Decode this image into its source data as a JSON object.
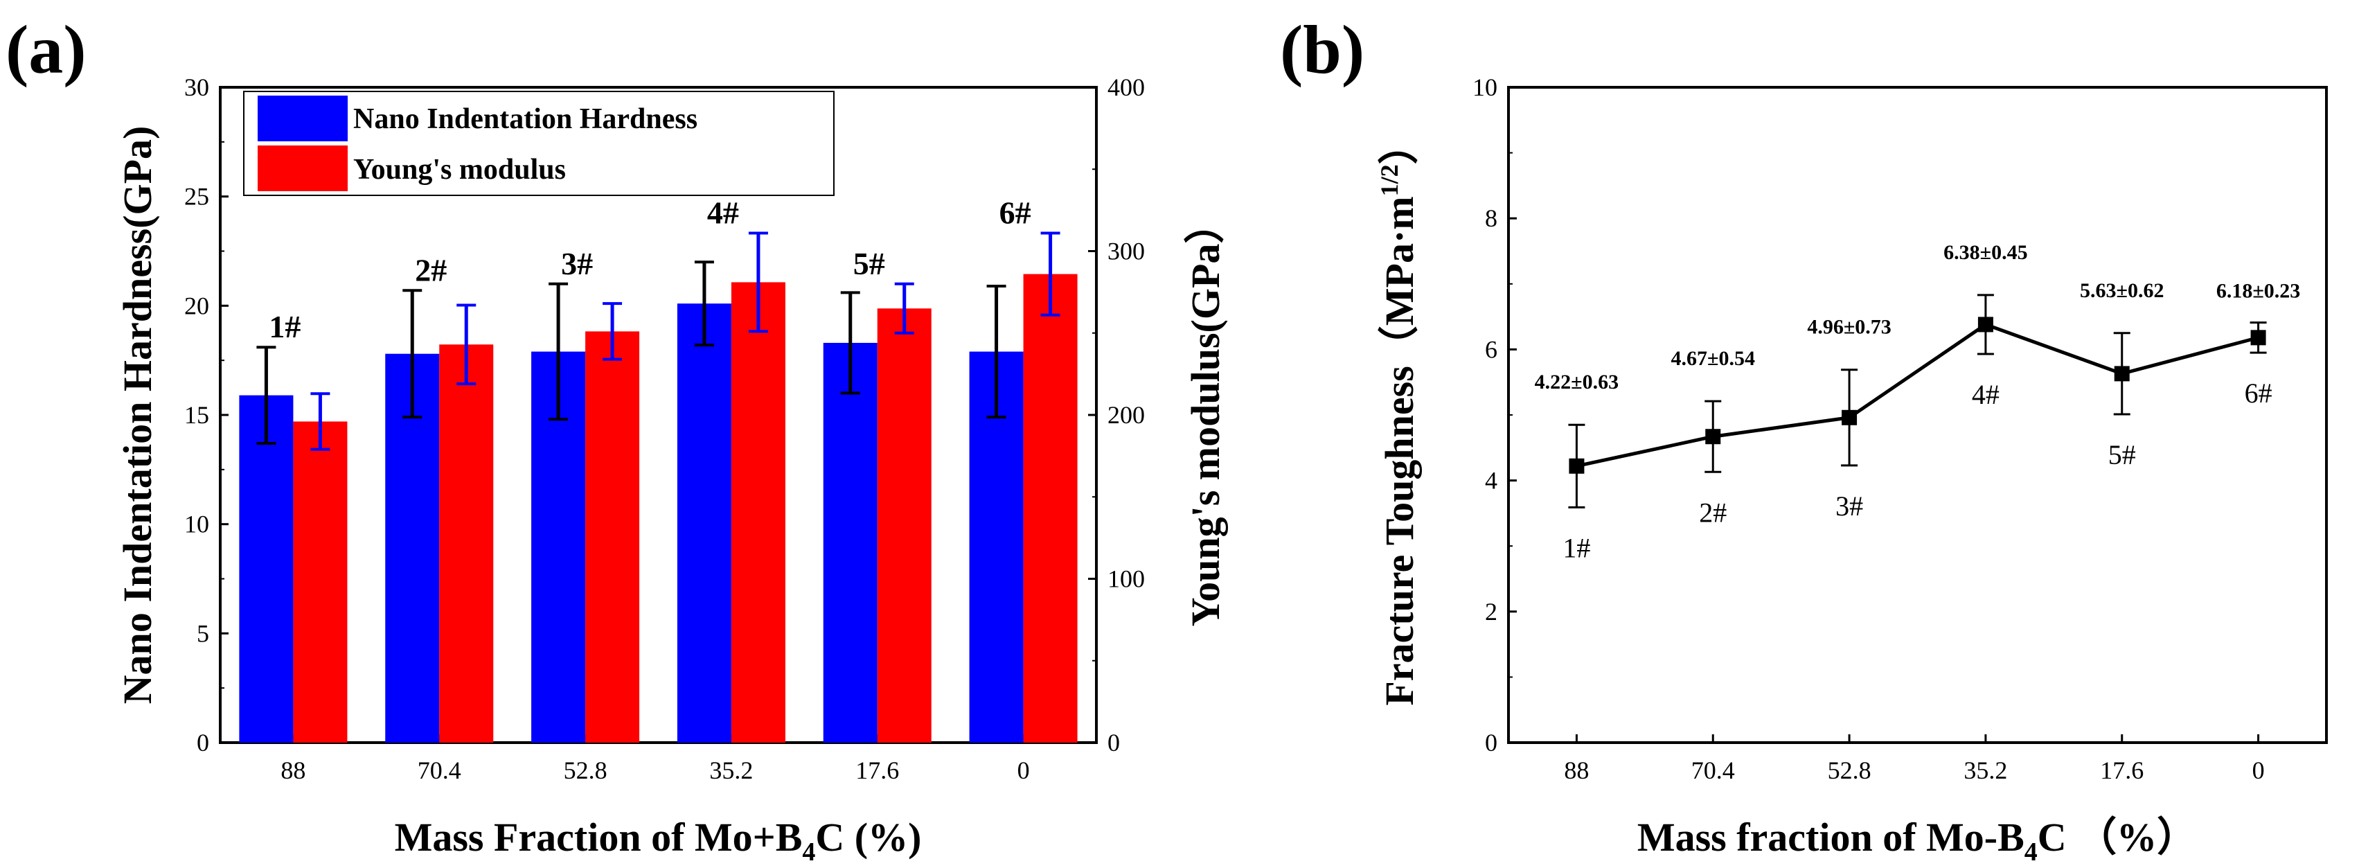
{
  "panels": {
    "a": {
      "label": "(a)"
    },
    "b": {
      "label": "(b)"
    }
  },
  "chart_data": [
    {
      "type": "bar",
      "categories": [
        "88",
        "70.4",
        "52.8",
        "35.2",
        "17.6",
        "0"
      ],
      "xlabel": "Mass Fraction of Mo+B4C (%)",
      "xlabel_main": "Mass Fraction of Mo+B",
      "xlabel_sub": "4",
      "xlabel_tail": "C (%)",
      "ylabel": "Nano Indentation Hardness(GPa)",
      "ylim": [
        0,
        30
      ],
      "yticks": [
        "0",
        "5",
        "10",
        "15",
        "20",
        "25",
        "30"
      ],
      "y2label": "Young's modulus(GPa）",
      "y2lim": [
        0,
        400
      ],
      "y2ticks": [
        "0",
        "100",
        "200",
        "300",
        "400"
      ],
      "legend_position": "top-left",
      "grid": false,
      "sample_tags": [
        "1#",
        "2#",
        "3#",
        "4#",
        "5#",
        "6#"
      ],
      "series": [
        {
          "name": "Nano Indentation Hardness",
          "axis": "left",
          "color": "#0000ff",
          "values": [
            15.9,
            17.8,
            17.9,
            20.1,
            18.3,
            17.9
          ],
          "errors": [
            2.2,
            2.9,
            3.1,
            1.9,
            2.3,
            3.0
          ]
        },
        {
          "name": "Young's modulus",
          "axis": "right",
          "color": "#ff0000",
          "values": [
            196,
            243,
            251,
            281,
            265,
            286
          ],
          "errors": [
            17,
            24,
            17,
            30,
            15,
            25
          ]
        }
      ]
    },
    {
      "type": "line",
      "categories": [
        "88",
        "70.4",
        "52.8",
        "35.2",
        "17.6",
        "0"
      ],
      "xlabel": "Mass fraction of Mo-B4C （%）",
      "xlabel_main": "Mass fraction of Mo-B",
      "xlabel_sub": "4",
      "xlabel_tail": "C （%）",
      "ylabel": "Fracture Toughness（MPa·m1/2）",
      "ylabel_main": "Fracture Toughness（MPa·m",
      "ylabel_sup": "1/2",
      "ylabel_tail": "）",
      "ylim": [
        0,
        10
      ],
      "yticks": [
        "0",
        "2",
        "4",
        "6",
        "8",
        "10"
      ],
      "grid": false,
      "series": [
        {
          "values": [
            4.22,
            4.67,
            4.96,
            6.38,
            5.63,
            6.18
          ],
          "errors": [
            0.63,
            0.54,
            0.73,
            0.45,
            0.62,
            0.23
          ],
          "color": "#000000"
        }
      ],
      "data_labels": [
        "4.22±0.63",
        "4.67±0.54",
        "4.96±0.73",
        "6.38±0.45",
        "5.63±0.62",
        "6.18±0.23"
      ],
      "sample_tags": [
        "1#",
        "2#",
        "3#",
        "4#",
        "5#",
        "6#"
      ]
    }
  ]
}
